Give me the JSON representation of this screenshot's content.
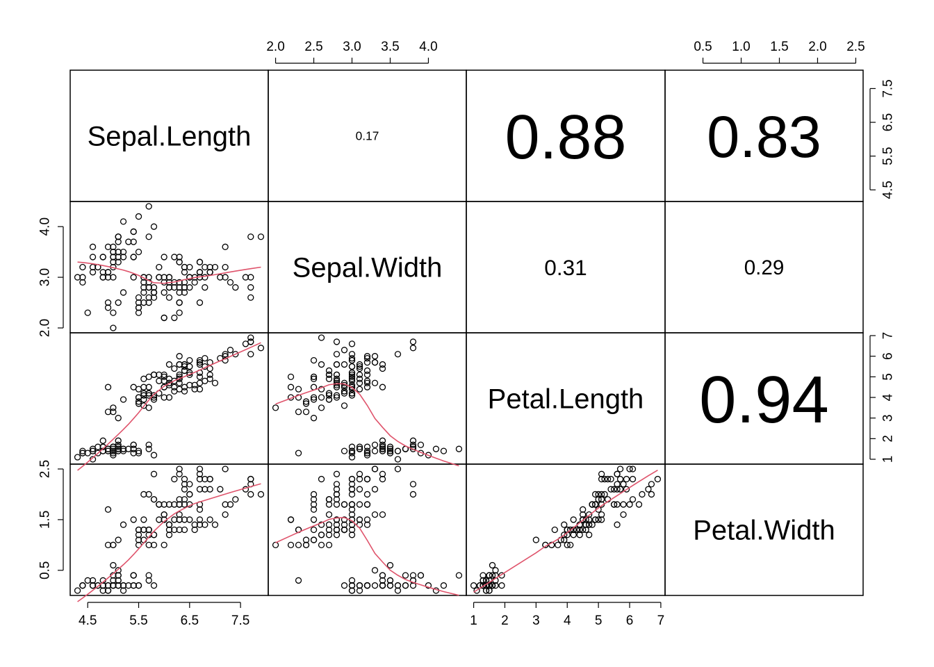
{
  "chart_data": {
    "type": "scatter",
    "variables": [
      "Sepal.Length",
      "Sepal.Width",
      "Petal.Length",
      "Petal.Width"
    ],
    "ranges": [
      [
        4.3,
        7.9
      ],
      [
        2.0,
        4.4
      ],
      [
        1.0,
        6.9
      ],
      [
        0.1,
        2.5
      ]
    ],
    "ticks": [
      [
        "4.5",
        "5.5",
        "6.5",
        "7.5"
      ],
      [
        "2.0",
        "2.5",
        "3.0",
        "3.5",
        "4.0"
      ],
      [
        "1",
        "2",
        "3",
        "4",
        "5",
        "6",
        "7"
      ],
      [
        "0.5",
        "1.0",
        "1.5",
        "2.0",
        "2.5"
      ]
    ],
    "left_ticks": {
      "Sepal.Width": [
        "2.0",
        "3.0",
        "4.0"
      ],
      "Petal.Width": [
        "0.5",
        "1.5",
        "2.5"
      ]
    },
    "correlations": [
      {
        "row": 0,
        "col": 1,
        "label": "0.17",
        "value": 0.17
      },
      {
        "row": 0,
        "col": 2,
        "label": "0.88",
        "value": 0.88
      },
      {
        "row": 0,
        "col": 3,
        "label": "0.83",
        "value": 0.83
      },
      {
        "row": 1,
        "col": 2,
        "label": "0.31",
        "value": 0.31
      },
      {
        "row": 1,
        "col": 3,
        "label": "0.29",
        "value": 0.29
      },
      {
        "row": 2,
        "col": 3,
        "label": "0.94",
        "value": 0.94
      }
    ],
    "smooth_color": "#DF536B",
    "point_color": "#000000",
    "observations": [
      [
        5.1,
        3.5,
        1.4,
        0.2
      ],
      [
        4.9,
        3.0,
        1.4,
        0.2
      ],
      [
        4.7,
        3.2,
        1.3,
        0.2
      ],
      [
        4.6,
        3.1,
        1.5,
        0.2
      ],
      [
        5.0,
        3.6,
        1.4,
        0.2
      ],
      [
        5.4,
        3.9,
        1.7,
        0.4
      ],
      [
        4.6,
        3.4,
        1.4,
        0.3
      ],
      [
        5.0,
        3.4,
        1.5,
        0.2
      ],
      [
        4.4,
        2.9,
        1.4,
        0.2
      ],
      [
        4.9,
        3.1,
        1.5,
        0.1
      ],
      [
        5.4,
        3.7,
        1.5,
        0.2
      ],
      [
        4.8,
        3.4,
        1.6,
        0.2
      ],
      [
        4.8,
        3.0,
        1.4,
        0.1
      ],
      [
        4.3,
        3.0,
        1.1,
        0.1
      ],
      [
        5.8,
        4.0,
        1.2,
        0.2
      ],
      [
        5.7,
        4.4,
        1.5,
        0.4
      ],
      [
        5.4,
        3.9,
        1.3,
        0.4
      ],
      [
        5.1,
        3.5,
        1.4,
        0.3
      ],
      [
        5.7,
        3.8,
        1.7,
        0.3
      ],
      [
        5.1,
        3.8,
        1.5,
        0.3
      ],
      [
        5.4,
        3.4,
        1.7,
        0.2
      ],
      [
        5.1,
        3.7,
        1.5,
        0.4
      ],
      [
        4.6,
        3.6,
        1.0,
        0.2
      ],
      [
        5.1,
        3.3,
        1.7,
        0.5
      ],
      [
        4.8,
        3.4,
        1.9,
        0.2
      ],
      [
        5.0,
        3.0,
        1.6,
        0.2
      ],
      [
        5.0,
        3.4,
        1.6,
        0.4
      ],
      [
        5.2,
        3.5,
        1.5,
        0.2
      ],
      [
        5.2,
        3.4,
        1.4,
        0.2
      ],
      [
        4.7,
        3.2,
        1.6,
        0.2
      ],
      [
        4.8,
        3.1,
        1.6,
        0.2
      ],
      [
        5.4,
        3.4,
        1.5,
        0.4
      ],
      [
        5.2,
        4.1,
        1.5,
        0.1
      ],
      [
        5.5,
        4.2,
        1.4,
        0.2
      ],
      [
        4.9,
        3.1,
        1.5,
        0.2
      ],
      [
        5.0,
        3.2,
        1.2,
        0.2
      ],
      [
        5.5,
        3.5,
        1.3,
        0.2
      ],
      [
        4.9,
        3.6,
        1.4,
        0.1
      ],
      [
        4.4,
        3.0,
        1.3,
        0.2
      ],
      [
        5.1,
        3.4,
        1.5,
        0.2
      ],
      [
        5.0,
        3.5,
        1.3,
        0.3
      ],
      [
        4.5,
        2.3,
        1.3,
        0.3
      ],
      [
        4.4,
        3.2,
        1.3,
        0.2
      ],
      [
        5.0,
        3.5,
        1.6,
        0.6
      ],
      [
        5.1,
        3.8,
        1.9,
        0.4
      ],
      [
        4.8,
        3.0,
        1.4,
        0.3
      ],
      [
        5.1,
        3.8,
        1.6,
        0.2
      ],
      [
        4.6,
        3.2,
        1.4,
        0.2
      ],
      [
        5.3,
        3.7,
        1.5,
        0.2
      ],
      [
        5.0,
        3.3,
        1.4,
        0.2
      ],
      [
        7.0,
        3.2,
        4.7,
        1.4
      ],
      [
        6.4,
        3.2,
        4.5,
        1.5
      ],
      [
        6.9,
        3.1,
        4.9,
        1.5
      ],
      [
        5.5,
        2.3,
        4.0,
        1.3
      ],
      [
        6.5,
        2.8,
        4.6,
        1.5
      ],
      [
        5.7,
        2.8,
        4.5,
        1.3
      ],
      [
        6.3,
        3.3,
        4.7,
        1.6
      ],
      [
        4.9,
        2.4,
        3.3,
        1.0
      ],
      [
        6.6,
        2.9,
        4.6,
        1.3
      ],
      [
        5.2,
        2.7,
        3.9,
        1.4
      ],
      [
        5.0,
        2.0,
        3.5,
        1.0
      ],
      [
        5.9,
        3.0,
        4.2,
        1.5
      ],
      [
        6.0,
        2.2,
        4.0,
        1.0
      ],
      [
        6.1,
        2.9,
        4.7,
        1.4
      ],
      [
        5.6,
        2.9,
        3.6,
        1.3
      ],
      [
        6.7,
        3.1,
        4.4,
        1.4
      ],
      [
        5.6,
        3.0,
        4.5,
        1.5
      ],
      [
        5.8,
        2.7,
        4.1,
        1.0
      ],
      [
        6.2,
        2.2,
        4.5,
        1.5
      ],
      [
        5.6,
        2.5,
        3.9,
        1.1
      ],
      [
        5.9,
        3.2,
        4.8,
        1.8
      ],
      [
        6.1,
        2.8,
        4.0,
        1.3
      ],
      [
        6.3,
        2.5,
        4.9,
        1.5
      ],
      [
        6.1,
        2.8,
        4.7,
        1.2
      ],
      [
        6.4,
        2.9,
        4.3,
        1.3
      ],
      [
        6.6,
        3.0,
        4.4,
        1.4
      ],
      [
        6.8,
        2.8,
        4.8,
        1.4
      ],
      [
        6.7,
        3.0,
        5.0,
        1.7
      ],
      [
        6.0,
        2.9,
        4.5,
        1.5
      ],
      [
        5.7,
        2.6,
        3.5,
        1.0
      ],
      [
        5.5,
        2.4,
        3.8,
        1.1
      ],
      [
        5.5,
        2.4,
        3.7,
        1.0
      ],
      [
        5.8,
        2.7,
        3.9,
        1.2
      ],
      [
        6.0,
        2.7,
        5.1,
        1.6
      ],
      [
        5.4,
        3.0,
        4.5,
        1.5
      ],
      [
        6.0,
        3.4,
        4.5,
        1.6
      ],
      [
        6.7,
        3.1,
        4.7,
        1.5
      ],
      [
        6.3,
        2.3,
        4.4,
        1.3
      ],
      [
        5.6,
        3.0,
        4.1,
        1.3
      ],
      [
        5.5,
        2.5,
        4.0,
        1.3
      ],
      [
        5.5,
        2.6,
        4.4,
        1.2
      ],
      [
        6.1,
        3.0,
        4.6,
        1.4
      ],
      [
        5.8,
        2.6,
        4.0,
        1.2
      ],
      [
        5.0,
        2.3,
        3.3,
        1.0
      ],
      [
        5.6,
        2.7,
        4.2,
        1.3
      ],
      [
        5.7,
        3.0,
        4.2,
        1.2
      ],
      [
        5.7,
        2.9,
        4.2,
        1.3
      ],
      [
        6.2,
        2.9,
        4.3,
        1.3
      ],
      [
        5.1,
        2.5,
        3.0,
        1.1
      ],
      [
        5.7,
        2.8,
        4.1,
        1.3
      ],
      [
        6.3,
        3.3,
        6.0,
        2.5
      ],
      [
        5.8,
        2.7,
        5.1,
        1.9
      ],
      [
        7.1,
        3.0,
        5.9,
        2.1
      ],
      [
        6.3,
        2.9,
        5.6,
        1.8
      ],
      [
        6.5,
        3.0,
        5.8,
        2.2
      ],
      [
        7.6,
        3.0,
        6.6,
        2.1
      ],
      [
        4.9,
        2.5,
        4.5,
        1.7
      ],
      [
        7.3,
        2.9,
        6.3,
        1.8
      ],
      [
        6.7,
        2.5,
        5.8,
        1.8
      ],
      [
        7.2,
        3.6,
        6.1,
        2.5
      ],
      [
        6.5,
        3.2,
        5.1,
        2.0
      ],
      [
        6.4,
        2.7,
        5.3,
        1.9
      ],
      [
        6.8,
        3.0,
        5.5,
        2.1
      ],
      [
        5.7,
        2.5,
        5.0,
        2.0
      ],
      [
        5.8,
        2.8,
        5.1,
        2.4
      ],
      [
        6.4,
        3.2,
        5.3,
        2.3
      ],
      [
        6.5,
        3.0,
        5.5,
        1.8
      ],
      [
        7.7,
        3.8,
        6.7,
        2.2
      ],
      [
        7.7,
        2.6,
        6.9,
        2.3
      ],
      [
        6.0,
        2.2,
        5.0,
        1.5
      ],
      [
        6.9,
        3.2,
        5.7,
        2.3
      ],
      [
        5.6,
        2.8,
        4.9,
        2.0
      ],
      [
        7.7,
        2.8,
        6.7,
        2.0
      ],
      [
        6.3,
        2.7,
        4.9,
        1.8
      ],
      [
        6.7,
        3.3,
        5.7,
        2.1
      ],
      [
        7.2,
        3.2,
        6.0,
        1.8
      ],
      [
        6.2,
        2.8,
        4.8,
        1.8
      ],
      [
        6.1,
        3.0,
        4.9,
        1.8
      ],
      [
        6.4,
        2.8,
        5.6,
        2.1
      ],
      [
        7.2,
        3.0,
        5.8,
        1.6
      ],
      [
        7.4,
        2.8,
        6.1,
        1.9
      ],
      [
        7.9,
        3.8,
        6.4,
        2.0
      ],
      [
        6.4,
        2.8,
        5.6,
        2.2
      ],
      [
        6.3,
        2.8,
        5.1,
        1.5
      ],
      [
        6.1,
        2.6,
        5.6,
        1.4
      ],
      [
        7.7,
        3.0,
        6.1,
        2.3
      ],
      [
        6.3,
        3.4,
        5.6,
        2.4
      ],
      [
        6.4,
        3.1,
        5.5,
        1.8
      ],
      [
        6.0,
        3.0,
        4.8,
        1.8
      ],
      [
        6.9,
        3.1,
        5.4,
        2.1
      ],
      [
        6.7,
        3.1,
        5.6,
        2.4
      ],
      [
        6.9,
        3.1,
        5.1,
        2.3
      ],
      [
        5.8,
        2.7,
        5.1,
        1.9
      ],
      [
        6.8,
        3.2,
        5.9,
        2.3
      ],
      [
        6.7,
        3.3,
        5.7,
        2.5
      ],
      [
        6.7,
        3.0,
        5.2,
        2.3
      ],
      [
        6.3,
        2.5,
        5.0,
        1.9
      ],
      [
        6.5,
        3.0,
        5.2,
        2.0
      ],
      [
        6.2,
        3.4,
        5.4,
        2.3
      ],
      [
        5.9,
        3.0,
        5.1,
        1.8
      ]
    ]
  }
}
